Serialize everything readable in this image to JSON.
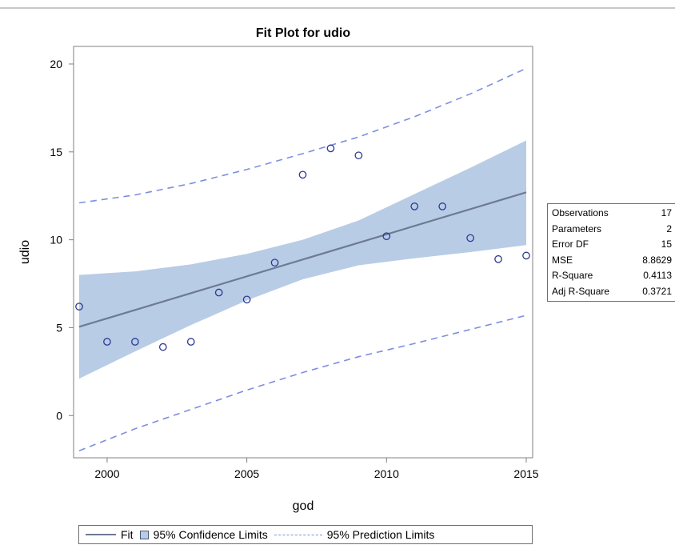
{
  "chart_data": {
    "type": "scatter",
    "title": "Fit Plot for udio",
    "xlabel": "god",
    "ylabel": "udio",
    "xlim": [
      1999,
      2015
    ],
    "ylim": [
      -2.4,
      21
    ],
    "xticks": [
      2000,
      2005,
      2010,
      2015
    ],
    "yticks": [
      0,
      5,
      10,
      15,
      20
    ],
    "points": [
      {
        "x": 1999,
        "y": 6.2
      },
      {
        "x": 2000,
        "y": 4.2
      },
      {
        "x": 2001,
        "y": 4.2
      },
      {
        "x": 2002,
        "y": 3.9
      },
      {
        "x": 2003,
        "y": 4.2
      },
      {
        "x": 2004,
        "y": 7.0
      },
      {
        "x": 2005,
        "y": 6.6
      },
      {
        "x": 2006,
        "y": 8.7
      },
      {
        "x": 2007,
        "y": 13.7
      },
      {
        "x": 2008,
        "y": 15.2
      },
      {
        "x": 2009,
        "y": 14.8
      },
      {
        "x": 2010,
        "y": 10.2
      },
      {
        "x": 2011,
        "y": 11.9
      },
      {
        "x": 2012,
        "y": 11.9
      },
      {
        "x": 2013,
        "y": 10.1
      },
      {
        "x": 2014,
        "y": 8.9
      },
      {
        "x": 2015,
        "y": 9.1
      }
    ],
    "fit": {
      "x": [
        1999,
        2015
      ],
      "y": [
        5.05,
        12.7
      ]
    },
    "confidence_limits": {
      "x": [
        1999,
        2001,
        2003,
        2005,
        2007,
        2009,
        2011,
        2013,
        2015
      ],
      "lower": [
        2.1,
        3.65,
        5.15,
        6.55,
        7.75,
        8.55,
        8.95,
        9.3,
        9.7
      ],
      "upper": [
        8.0,
        8.2,
        8.6,
        9.2,
        10.0,
        11.1,
        12.6,
        14.1,
        15.65
      ]
    },
    "prediction_limits": {
      "x": [
        1999,
        2001,
        2003,
        2005,
        2007,
        2009,
        2011,
        2013,
        2015
      ],
      "lower": [
        -2.0,
        -0.75,
        0.35,
        1.45,
        2.45,
        3.35,
        4.1,
        4.9,
        5.7
      ],
      "upper": [
        12.1,
        12.55,
        13.2,
        14.0,
        14.9,
        15.85,
        17.0,
        18.3,
        19.75
      ]
    },
    "legend": [
      "Fit",
      "95% Confidence Limits",
      "95% Prediction Limits"
    ],
    "legend_position": "bottom",
    "grid": false,
    "colors": {
      "fit": "#6e7a94",
      "band": "#b8cce6",
      "points": "#2b3990",
      "prediction": "#7d8ee0"
    }
  },
  "stats": [
    {
      "label": "Observations",
      "value": "17"
    },
    {
      "label": "Parameters",
      "value": "2"
    },
    {
      "label": "Error DF",
      "value": "15"
    },
    {
      "label": "MSE",
      "value": "8.8629"
    },
    {
      "label": "R-Square",
      "value": "0.4113"
    },
    {
      "label": "Adj R-Square",
      "value": "0.3721"
    }
  ]
}
